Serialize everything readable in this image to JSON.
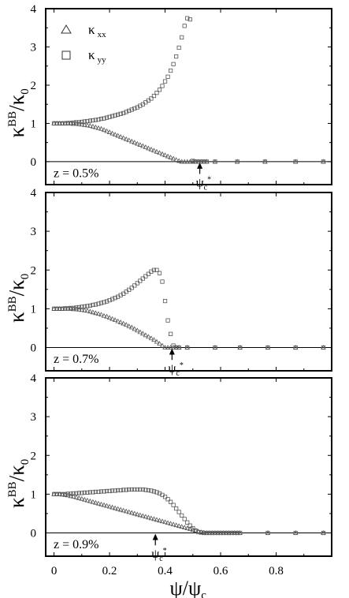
{
  "chart_data": [
    {
      "type": "scatter",
      "ylabel": "κBB/κ0",
      "xlabel": "ψ/ψc",
      "xlim": [
        -0.03,
        1.0
      ],
      "ylim": [
        -0.6,
        4
      ],
      "xticks": [
        "0",
        "0.2",
        "0.4",
        "0.6",
        "0.8"
      ],
      "yticks": [
        "0",
        "1",
        "2",
        "3",
        "4"
      ],
      "annotation": "z = 0.5%",
      "critical_label": "ψc*",
      "critical_x": 0.525,
      "legend": [
        {
          "symbol": "triangle",
          "label": "κ",
          "sub": "xx"
        },
        {
          "symbol": "square",
          "label": "κ",
          "sub": "yy"
        }
      ],
      "series": [
        {
          "name": "κxx",
          "marker": "triangle",
          "x": [
            0,
            0.01,
            0.02,
            0.03,
            0.04,
            0.05,
            0.06,
            0.07,
            0.08,
            0.09,
            0.1,
            0.11,
            0.12,
            0.13,
            0.14,
            0.15,
            0.16,
            0.17,
            0.18,
            0.19,
            0.2,
            0.21,
            0.22,
            0.23,
            0.24,
            0.25,
            0.26,
            0.27,
            0.28,
            0.29,
            0.3,
            0.31,
            0.32,
            0.33,
            0.34,
            0.35,
            0.36,
            0.37,
            0.38,
            0.39,
            0.4,
            0.41,
            0.42,
            0.43,
            0.44,
            0.45,
            0.46,
            0.47,
            0.48,
            0.49,
            0.5,
            0.51,
            0.52,
            0.53,
            0.54,
            0.55,
            0.58,
            0.66,
            0.76,
            0.87,
            0.97
          ],
          "y": [
            1.0,
            1.0,
            1.0,
            1.0,
            1.0,
            1.0,
            1.0,
            0.99,
            0.99,
            0.98,
            0.97,
            0.96,
            0.95,
            0.94,
            0.92,
            0.9,
            0.88,
            0.86,
            0.83,
            0.8,
            0.77,
            0.74,
            0.71,
            0.68,
            0.65,
            0.62,
            0.59,
            0.56,
            0.53,
            0.5,
            0.47,
            0.44,
            0.41,
            0.38,
            0.35,
            0.32,
            0.29,
            0.26,
            0.23,
            0.2,
            0.17,
            0.14,
            0.11,
            0.08,
            0.05,
            0.02,
            0.0,
            0,
            0,
            0,
            0,
            0,
            0,
            0,
            0,
            0,
            0,
            0,
            0,
            0,
            0
          ]
        },
        {
          "name": "κyy",
          "marker": "square",
          "x": [
            0,
            0.01,
            0.02,
            0.03,
            0.04,
            0.05,
            0.06,
            0.07,
            0.08,
            0.09,
            0.1,
            0.11,
            0.12,
            0.13,
            0.14,
            0.15,
            0.16,
            0.17,
            0.18,
            0.19,
            0.2,
            0.21,
            0.22,
            0.23,
            0.24,
            0.25,
            0.26,
            0.27,
            0.28,
            0.29,
            0.3,
            0.31,
            0.32,
            0.33,
            0.34,
            0.35,
            0.36,
            0.37,
            0.38,
            0.39,
            0.4,
            0.41,
            0.42,
            0.43,
            0.44,
            0.45,
            0.46,
            0.47,
            0.48,
            0.49,
            0.5,
            0.51,
            0.52,
            0.53,
            0.54,
            0.55,
            0.58,
            0.66,
            0.76,
            0.87,
            0.97
          ],
          "y": [
            1.0,
            1.0,
            1.0,
            1.0,
            1.0,
            1.01,
            1.01,
            1.02,
            1.03,
            1.03,
            1.04,
            1.05,
            1.06,
            1.07,
            1.08,
            1.09,
            1.1,
            1.12,
            1.13,
            1.15,
            1.17,
            1.19,
            1.21,
            1.23,
            1.25,
            1.27,
            1.3,
            1.33,
            1.36,
            1.39,
            1.42,
            1.46,
            1.5,
            1.55,
            1.6,
            1.65,
            1.72,
            1.8,
            1.88,
            1.98,
            2.1,
            2.22,
            2.38,
            2.55,
            2.75,
            2.98,
            3.25,
            3.55,
            3.75,
            3.72,
            0.02,
            0,
            0,
            0,
            0,
            0,
            0,
            0,
            0,
            0,
            0
          ]
        }
      ]
    },
    {
      "type": "scatter",
      "ylabel": "κBB/κ0",
      "xlabel": "ψ/ψc",
      "xlim": [
        -0.03,
        1.0
      ],
      "ylim": [
        -0.6,
        4
      ],
      "xticks": [
        "0",
        "0.2",
        "0.4",
        "0.6",
        "0.8"
      ],
      "yticks": [
        "0",
        "1",
        "2",
        "3",
        "4"
      ],
      "annotation": "z = 0.7%",
      "critical_label": "ψc*",
      "critical_x": 0.425,
      "series": [
        {
          "name": "κxx",
          "marker": "triangle",
          "x": [
            0,
            0.01,
            0.02,
            0.03,
            0.04,
            0.05,
            0.06,
            0.07,
            0.08,
            0.09,
            0.1,
            0.11,
            0.12,
            0.13,
            0.14,
            0.15,
            0.16,
            0.17,
            0.18,
            0.19,
            0.2,
            0.21,
            0.22,
            0.23,
            0.24,
            0.25,
            0.26,
            0.27,
            0.28,
            0.29,
            0.3,
            0.31,
            0.32,
            0.33,
            0.34,
            0.35,
            0.36,
            0.37,
            0.38,
            0.39,
            0.4,
            0.41,
            0.42,
            0.43,
            0.44,
            0.45,
            0.48,
            0.58,
            0.67,
            0.77,
            0.87,
            0.97
          ],
          "y": [
            1.0,
            1.0,
            1.0,
            1.0,
            1.0,
            1.0,
            1.0,
            0.99,
            0.99,
            0.98,
            0.97,
            0.96,
            0.95,
            0.93,
            0.91,
            0.89,
            0.87,
            0.85,
            0.82,
            0.8,
            0.77,
            0.74,
            0.71,
            0.68,
            0.65,
            0.62,
            0.59,
            0.55,
            0.52,
            0.48,
            0.44,
            0.4,
            0.36,
            0.32,
            0.28,
            0.24,
            0.2,
            0.15,
            0.1,
            0.05,
            0.0,
            0,
            0,
            0,
            0,
            0,
            0,
            0,
            0,
            0,
            0,
            0
          ]
        },
        {
          "name": "κyy",
          "marker": "square",
          "x": [
            0,
            0.01,
            0.02,
            0.03,
            0.04,
            0.05,
            0.06,
            0.07,
            0.08,
            0.09,
            0.1,
            0.11,
            0.12,
            0.13,
            0.14,
            0.15,
            0.16,
            0.17,
            0.18,
            0.19,
            0.2,
            0.21,
            0.22,
            0.23,
            0.24,
            0.25,
            0.26,
            0.27,
            0.28,
            0.29,
            0.3,
            0.31,
            0.32,
            0.33,
            0.34,
            0.35,
            0.36,
            0.37,
            0.38,
            0.39,
            0.4,
            0.41,
            0.42,
            0.43,
            0.44,
            0.45,
            0.48,
            0.58,
            0.67,
            0.77,
            0.87,
            0.97
          ],
          "y": [
            1.0,
            1.0,
            1.0,
            1.0,
            1.01,
            1.01,
            1.02,
            1.02,
            1.03,
            1.04,
            1.05,
            1.06,
            1.07,
            1.08,
            1.1,
            1.11,
            1.13,
            1.15,
            1.17,
            1.19,
            1.22,
            1.25,
            1.28,
            1.31,
            1.35,
            1.39,
            1.44,
            1.49,
            1.54,
            1.6,
            1.66,
            1.72,
            1.78,
            1.84,
            1.9,
            1.96,
            2.0,
            2.0,
            1.92,
            1.7,
            1.2,
            0.7,
            0.35,
            0.05,
            0,
            0,
            0,
            0,
            0,
            0,
            0,
            0
          ]
        }
      ]
    },
    {
      "type": "scatter",
      "ylabel": "κBB/κ0",
      "xlabel": "ψ/ψc",
      "xlim": [
        -0.03,
        1.0
      ],
      "ylim": [
        -0.6,
        4
      ],
      "xticks": [
        "0",
        "0.2",
        "0.4",
        "0.6",
        "0.8"
      ],
      "yticks": [
        "0",
        "1",
        "2",
        "3",
        "4"
      ],
      "annotation": "z = 0.9%",
      "critical_label": "ψc*",
      "critical_x": 0.365,
      "series": [
        {
          "name": "κxx",
          "marker": "triangle",
          "x": [
            0,
            0.01,
            0.02,
            0.03,
            0.04,
            0.05,
            0.06,
            0.07,
            0.08,
            0.09,
            0.1,
            0.11,
            0.12,
            0.13,
            0.14,
            0.15,
            0.16,
            0.17,
            0.18,
            0.19,
            0.2,
            0.21,
            0.22,
            0.23,
            0.24,
            0.25,
            0.26,
            0.27,
            0.28,
            0.29,
            0.3,
            0.31,
            0.32,
            0.33,
            0.34,
            0.35,
            0.36,
            0.37,
            0.38,
            0.39,
            0.4,
            0.41,
            0.42,
            0.43,
            0.44,
            0.45,
            0.46,
            0.47,
            0.48,
            0.49,
            0.5,
            0.51,
            0.52,
            0.53,
            0.54,
            0.55,
            0.56,
            0.57,
            0.58,
            0.59,
            0.6,
            0.61,
            0.62,
            0.63,
            0.64,
            0.65,
            0.66,
            0.67,
            0.77,
            0.87,
            0.97
          ],
          "y": [
            1.0,
            1.0,
            1.0,
            0.99,
            0.98,
            0.97,
            0.95,
            0.94,
            0.92,
            0.9,
            0.88,
            0.86,
            0.84,
            0.82,
            0.8,
            0.78,
            0.76,
            0.74,
            0.72,
            0.7,
            0.68,
            0.66,
            0.64,
            0.62,
            0.6,
            0.58,
            0.56,
            0.54,
            0.52,
            0.5,
            0.48,
            0.46,
            0.44,
            0.42,
            0.4,
            0.38,
            0.36,
            0.34,
            0.32,
            0.3,
            0.28,
            0.26,
            0.24,
            0.22,
            0.2,
            0.18,
            0.16,
            0.14,
            0.12,
            0.1,
            0.08,
            0.06,
            0.04,
            0.02,
            0.01,
            0.0,
            0,
            0,
            0,
            0,
            0,
            0,
            0,
            0,
            0,
            0,
            0,
            0,
            0,
            0,
            0
          ]
        },
        {
          "name": "κyy",
          "marker": "square",
          "x": [
            0,
            0.01,
            0.02,
            0.03,
            0.04,
            0.05,
            0.06,
            0.07,
            0.08,
            0.09,
            0.1,
            0.11,
            0.12,
            0.13,
            0.14,
            0.15,
            0.16,
            0.17,
            0.18,
            0.19,
            0.2,
            0.21,
            0.22,
            0.23,
            0.24,
            0.25,
            0.26,
            0.27,
            0.28,
            0.29,
            0.3,
            0.31,
            0.32,
            0.33,
            0.34,
            0.35,
            0.36,
            0.37,
            0.38,
            0.39,
            0.4,
            0.41,
            0.42,
            0.43,
            0.44,
            0.45,
            0.46,
            0.47,
            0.48,
            0.49,
            0.5,
            0.51,
            0.52,
            0.53,
            0.54,
            0.55,
            0.56,
            0.57,
            0.58,
            0.59,
            0.6,
            0.61,
            0.62,
            0.63,
            0.64,
            0.65,
            0.66,
            0.67,
            0.77,
            0.87,
            0.97
          ],
          "y": [
            1.0,
            1.0,
            1.0,
            1.0,
            1.0,
            1.01,
            1.01,
            1.02,
            1.02,
            1.03,
            1.03,
            1.04,
            1.04,
            1.05,
            1.05,
            1.06,
            1.06,
            1.07,
            1.07,
            1.08,
            1.08,
            1.09,
            1.09,
            1.1,
            1.1,
            1.11,
            1.11,
            1.12,
            1.12,
            1.12,
            1.12,
            1.12,
            1.12,
            1.11,
            1.1,
            1.09,
            1.07,
            1.05,
            1.02,
            0.98,
            0.93,
            0.87,
            0.8,
            0.72,
            0.63,
            0.54,
            0.45,
            0.36,
            0.27,
            0.19,
            0.12,
            0.06,
            0.02,
            0.01,
            0,
            0,
            0,
            0,
            0,
            0,
            0,
            0,
            0,
            0,
            0,
            0,
            0,
            0,
            0,
            0,
            0
          ]
        }
      ]
    }
  ]
}
